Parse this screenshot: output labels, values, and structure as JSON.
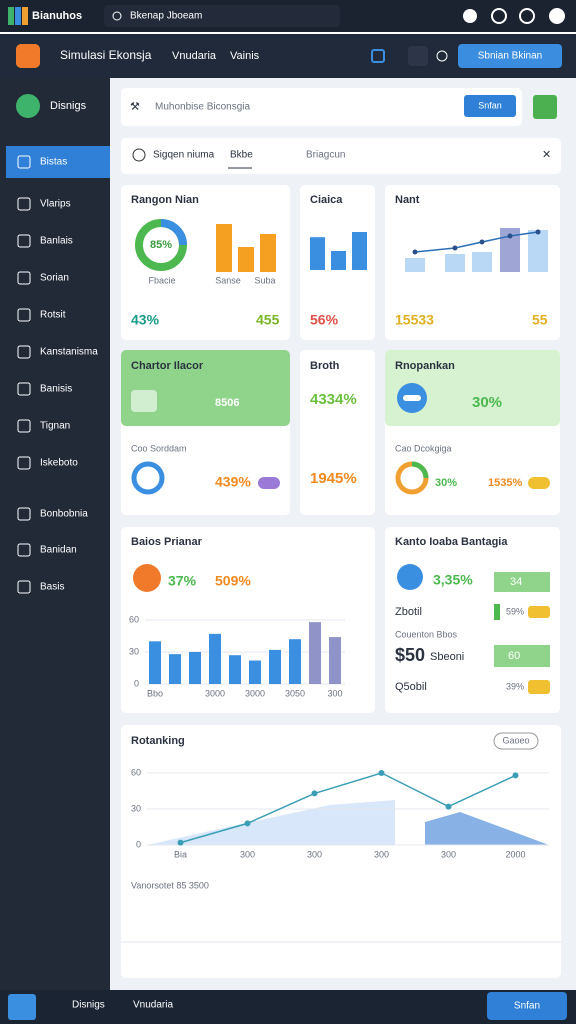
{
  "topbar": {
    "app": "Bianuhos",
    "search": "Bkenap Jboeam"
  },
  "header": {
    "title": "Simulasi Ekonsja",
    "tabs": [
      "Vnudaria",
      "Vainis"
    ],
    "button": "Sbnian Bkinan"
  },
  "sidebar": {
    "brand": "Disnigs",
    "items": [
      "Bistas",
      "Vlarips",
      "Banlais",
      "Sorian",
      "Rotsit",
      "Kanstanisma",
      "Banisis",
      "Tignan",
      "Iskeboto",
      "Bonbobnia",
      "Banidan",
      "Basis"
    ]
  },
  "search_card": {
    "placeholder": "Muhonbise Biconsgia",
    "button": "Snfan"
  },
  "filter": {
    "label": "Sigqen niuma",
    "tab": "Bkbe",
    "dropdown": "Briagcun"
  },
  "cards": {
    "rangon": {
      "title": "Rangon Nian",
      "donut": "85%",
      "bars": [
        48,
        25,
        38
      ],
      "labels": [
        "Fbacie",
        "Sanse",
        "Suba"
      ],
      "stat": "43%",
      "stat2": "455"
    },
    "ciaica": {
      "title": "Ciaica",
      "bars": [
        38,
        22,
        44
      ],
      "stat": "56%"
    },
    "nant": {
      "title": "Nant",
      "bars": [
        14,
        18,
        20,
        44,
        42
      ],
      "line": [
        20,
        24,
        30,
        36,
        40
      ],
      "stat": "15533",
      "stat2": "55"
    },
    "chartor": {
      "title": "Chartor Ilacor",
      "value": "8506",
      "subtitle": "Coo Sorddam",
      "stat": "439%"
    },
    "broth": {
      "title": "Broth",
      "stat": "4334%",
      "stat2": "1945%"
    },
    "rnopankan": {
      "title": "Rnopankan",
      "stat": "30%",
      "subtitle": "Cao Dcokgiga",
      "stat2": "30%",
      "stat3": "1535%"
    },
    "baios": {
      "title": "Baios Prianar",
      "stat": "37%",
      "stat2": "509%",
      "chart": {
        "type": "bar",
        "categories": [
          "Bbo",
          null,
          null,
          "3000",
          null,
          "3000",
          null,
          "3050",
          null,
          "300"
        ],
        "values": [
          40,
          28,
          30,
          47,
          27,
          22,
          32,
          42,
          58,
          44
        ],
        "colors": [
          "#3b8fe0",
          "#3b8fe0",
          "#3b8fe0",
          "#3b8fe0",
          "#3b8fe0",
          "#3b8fe0",
          "#3b8fe0",
          "#3b8fe0",
          "#8f93c8",
          "#8f93c8"
        ],
        "ylim": [
          0,
          60
        ],
        "yticks": [
          0,
          30,
          60
        ]
      }
    },
    "kanto": {
      "title": "Kanto Ioaba Bantagia",
      "rows": [
        {
          "value": "3,35%",
          "badge": "34"
        },
        {
          "label": "Zbotil",
          "badge": "59%"
        },
        {
          "label": "Couenton Bbos"
        },
        {
          "value": "$50",
          "label": "Sbeoni",
          "badge": "60"
        },
        {
          "label": "Q5obil",
          "badge": "39%"
        }
      ]
    },
    "rotanking": {
      "title": "Rotanking",
      "button": "Gaoeo",
      "footer": "Vanorsotet 85 3500",
      "chart": {
        "type": "line",
        "categories": [
          "Bia",
          "300",
          "300",
          "300",
          "300",
          "2000"
        ],
        "values": [
          2,
          18,
          43,
          60,
          32,
          58
        ],
        "color": "#3a9fb5",
        "ylim": [
          0,
          60
        ],
        "yticks": [
          0,
          30,
          60
        ]
      }
    }
  }
}
